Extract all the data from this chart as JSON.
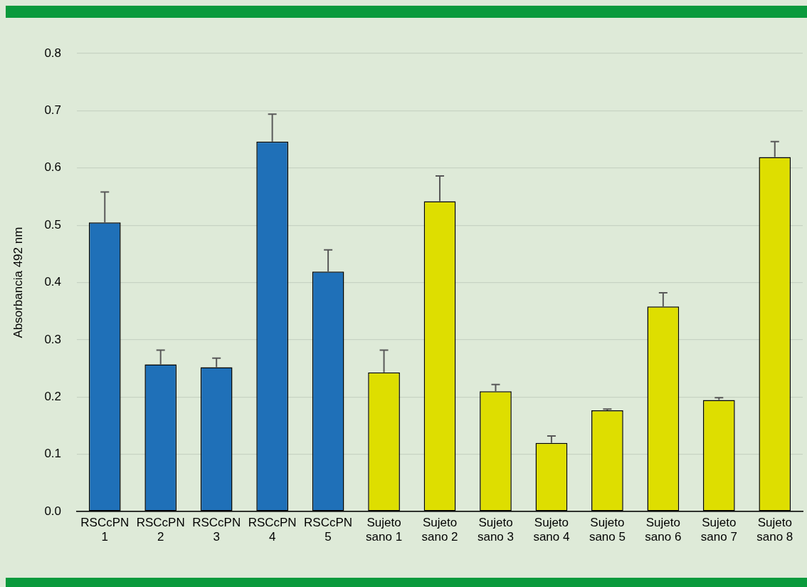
{
  "chart_data": {
    "type": "bar",
    "ylabel": "Absorbancia 492 nm",
    "categories": [
      "RSCcPN 1",
      "RSCcPN 2",
      "RSCcPN 3",
      "RSCcPN 4",
      "RSCcPN 5",
      "Sujeto sano 1",
      "Sujeto sano 2",
      "Sujeto sano 3",
      "Sujeto sano 4",
      "Sujeto sano 5",
      "Sujeto sano 6",
      "Sujeto sano 7",
      "Sujeto sano 8"
    ],
    "values": [
      0.505,
      0.257,
      0.252,
      0.646,
      0.419,
      0.243,
      0.542,
      0.21,
      0.12,
      0.177,
      0.358,
      0.195,
      0.619
    ],
    "errors": [
      0.053,
      0.025,
      0.016,
      0.048,
      0.038,
      0.039,
      0.044,
      0.012,
      0.012,
      0.002,
      0.024,
      0.004,
      0.027
    ],
    "colors": [
      "#1f70b8",
      "#1f70b8",
      "#1f70b8",
      "#1f70b8",
      "#1f70b8",
      "#dede00",
      "#dede00",
      "#dede00",
      "#dede00",
      "#dede00",
      "#dede00",
      "#dede00",
      "#dede00"
    ],
    "ylim": [
      0,
      0.8
    ],
    "yticks": [
      {
        "value": 0,
        "label": "0.0"
      },
      {
        "value": 0.1,
        "label": "0.1"
      },
      {
        "value": 0.2,
        "label": "0.2"
      },
      {
        "value": 0.3,
        "label": "0.3"
      },
      {
        "value": 0.4,
        "label": "0.4"
      },
      {
        "value": 0.5,
        "label": "0.5"
      },
      {
        "value": 0.6,
        "label": "0.6"
      },
      {
        "value": 0.7,
        "label": "0.7"
      },
      {
        "value": 0.8,
        "label": "0.8"
      }
    ],
    "grid": "y",
    "legend": false
  }
}
